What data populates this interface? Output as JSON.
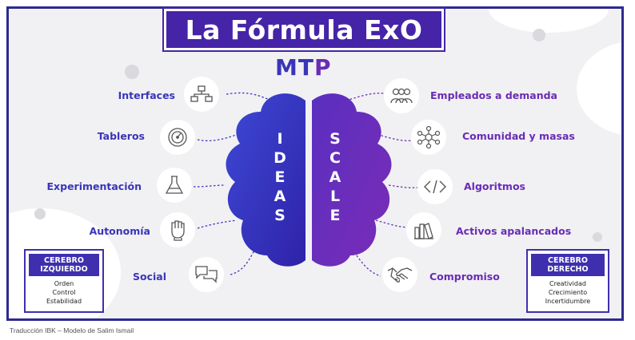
{
  "title": "La Fórmula ExO",
  "mtp": {
    "part1": "MT",
    "part2": "P"
  },
  "colors": {
    "left": "#3a35b8",
    "right": "#6a2bb5",
    "title_bg": "#4524a8",
    "frame": "#2d2a8f"
  },
  "left_brain": {
    "word": [
      "I",
      "D",
      "E",
      "A",
      "S"
    ]
  },
  "right_brain": {
    "word": [
      "S",
      "C",
      "A",
      "L",
      "E"
    ]
  },
  "ideas": [
    {
      "label": "Interfaces",
      "icon": "flowchart-icon"
    },
    {
      "label": "Tableros",
      "icon": "gauge-icon"
    },
    {
      "label": "Experimentación",
      "icon": "flask-icon"
    },
    {
      "label": "Autonomía",
      "icon": "fist-icon"
    },
    {
      "label": "Social",
      "icon": "chat-bubbles-icon"
    }
  ],
  "scale": [
    {
      "label": "Empleados a demanda",
      "icon": "people-icon"
    },
    {
      "label": "Comunidad y masas",
      "icon": "network-icon"
    },
    {
      "label": "Algoritmos",
      "icon": "code-icon"
    },
    {
      "label": "Activos apalancados",
      "icon": "books-icon"
    },
    {
      "label": "Compromiso",
      "icon": "handshake-icon"
    }
  ],
  "left_box": {
    "header": "CEREBRO IZQUIERDO",
    "items": [
      "Orden",
      "Control",
      "Estabilidad"
    ]
  },
  "right_box": {
    "header": "CEREBRO DERECHO",
    "items": [
      "Creatividad",
      "Crecimiento",
      "Incertidumbre"
    ]
  },
  "footer": "Traducción IBK – Modelo de Salim Ismail"
}
